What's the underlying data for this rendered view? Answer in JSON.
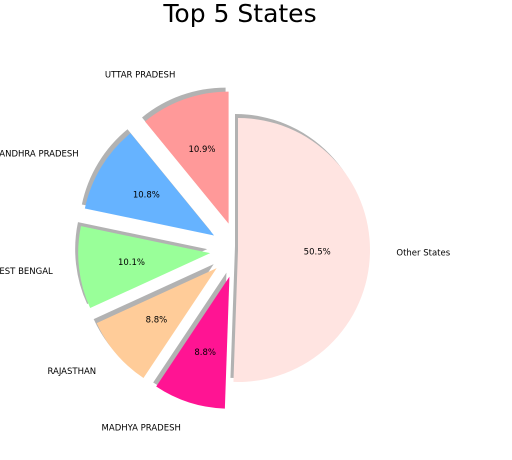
{
  "chart_data": {
    "type": "pie",
    "title": "Top 5 States",
    "categories": [
      "UTTAR PRADESH",
      "ANDHRA PRADESH",
      "WEST BENGAL",
      "RAJASTHAN",
      "MADHYA PRADESH",
      "Other States"
    ],
    "values": [
      10.9,
      10.8,
      10.1,
      8.8,
      8.8,
      50.5
    ],
    "value_labels": [
      "10.9%",
      "10.8%",
      "10.1%",
      "8.8%",
      "8.8%",
      "50.5%"
    ],
    "colors": [
      "#ff9999",
      "#66b3ff",
      "#99ff99",
      "#ffcc99",
      "#ff1493",
      "#ffe4e1"
    ],
    "exploded": [
      true,
      true,
      true,
      true,
      true,
      false
    ],
    "shadow": true,
    "start_angle_deg": 90,
    "direction": "counterclockwise"
  }
}
